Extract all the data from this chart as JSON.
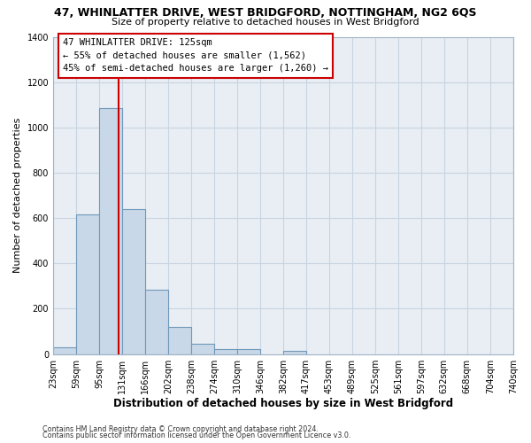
{
  "title": "47, WHINLATTER DRIVE, WEST BRIDGFORD, NOTTINGHAM, NG2 6QS",
  "subtitle": "Size of property relative to detached houses in West Bridgford",
  "xlabel": "Distribution of detached houses by size in West Bridgford",
  "ylabel": "Number of detached properties",
  "bin_edges": [
    23,
    59,
    95,
    131,
    166,
    202,
    238,
    274,
    310,
    346,
    382,
    417,
    453,
    489,
    525,
    561,
    597,
    632,
    668,
    704,
    740
  ],
  "bin_labels": [
    "23sqm",
    "59sqm",
    "95sqm",
    "131sqm",
    "166sqm",
    "202sqm",
    "238sqm",
    "274sqm",
    "310sqm",
    "346sqm",
    "382sqm",
    "417sqm",
    "453sqm",
    "489sqm",
    "525sqm",
    "561sqm",
    "597sqm",
    "632sqm",
    "668sqm",
    "704sqm",
    "740sqm"
  ],
  "counts": [
    30,
    615,
    1085,
    640,
    285,
    120,
    45,
    20,
    20,
    0,
    15,
    0,
    0,
    0,
    0,
    0,
    0,
    0,
    0,
    0
  ],
  "bar_color": "#c8d8e8",
  "bar_edge_color": "#7098b8",
  "vline_x": 125,
  "vline_color": "#cc0000",
  "annotation_title": "47 WHINLATTER DRIVE: 125sqm",
  "annotation_line1": "← 55% of detached houses are smaller (1,562)",
  "annotation_line2": "45% of semi-detached houses are larger (1,260) →",
  "annotation_box_color": "#ffffff",
  "annotation_box_edge": "#cc0000",
  "ylim": [
    0,
    1400
  ],
  "yticks": [
    0,
    200,
    400,
    600,
    800,
    1000,
    1200,
    1400
  ],
  "grid_color": "#c8d4e0",
  "plot_bg_color": "#e8eef4",
  "fig_bg_color": "#ffffff",
  "footer1": "Contains HM Land Registry data © Crown copyright and database right 2024.",
  "footer2": "Contains public sector information licensed under the Open Government Licence v3.0."
}
